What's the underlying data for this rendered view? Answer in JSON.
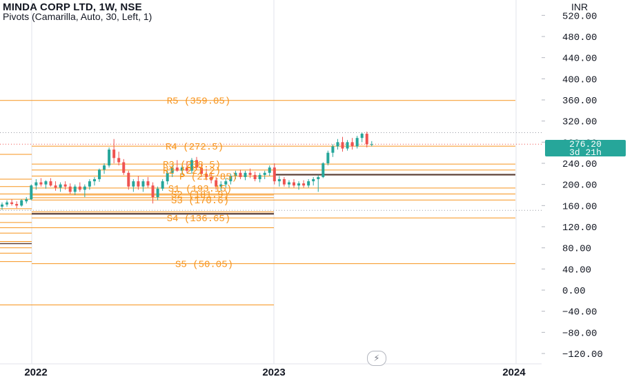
{
  "header": {
    "title": "MINDA CORP LTD, 1W, NSE",
    "subtitle": "Pivots (Camarilla, Auto, 30, Left, 1)",
    "currency": "INR"
  },
  "price_badge": {
    "price": "276.20",
    "countdown": "3d 21h",
    "color": "#26a69a"
  },
  "icons": {
    "bottom_button": "flash-icon"
  },
  "colors": {
    "up": "#26a69a",
    "down": "#ef5350",
    "pivot": "#f7931a",
    "pivot_dark": "#5d4037",
    "grid": "#e0e3eb"
  },
  "chart_data": {
    "type": "candlestick",
    "title": "MINDA CORP LTD, 1W, NSE",
    "indicator": "Pivots (Camarilla, Auto, 30, Left, 1)",
    "ylabel": "INR",
    "ylim": [
      -135,
      540
    ],
    "y_ticks": [
      -120,
      -80,
      -40,
      0,
      40,
      80,
      120,
      160,
      200,
      240,
      280,
      320,
      360,
      400,
      440,
      480,
      520
    ],
    "y_tick_labels": [
      "−120.00",
      "−80.00",
      "−40.00",
      "0.00",
      "40.00",
      "80.00",
      "120.00",
      "160.00",
      "200.00",
      "240.00",
      "280.00",
      "320.00",
      "360.00",
      "400.00",
      "440.00",
      "480.00",
      "520.00"
    ],
    "x_tick_labels": [
      "2022",
      "2023",
      "2024"
    ],
    "dotted_levels": [
      298,
      151
    ],
    "current_price": 276.2,
    "pivot_labels": [
      {
        "text": "R5 (359.05)",
        "value": 359.05
      },
      {
        "text": "R4 (272.5)",
        "value": 272.5
      },
      {
        "text": "R3 (238.5)",
        "value": 238.5
      },
      {
        "text": "R2 (227.2)",
        "value": 227.2
      },
      {
        "text": "P (215.85)",
        "value": 215.85
      },
      {
        "text": "S1 (193.15)",
        "value": 193.15
      },
      {
        "text": "S2 (181.9)",
        "value": 181.9
      },
      {
        "text": "S3 (170.6)",
        "value": 170.6
      },
      {
        "text": "S4 (136.65)",
        "value": 136.65
      },
      {
        "text": "S5 (50.05)",
        "value": 50.05
      }
    ],
    "pivot_periods": [
      {
        "period": "2021",
        "levels": [
          359,
          257,
          210,
          196,
          182,
          172,
          154,
          144,
          128,
          118,
          108,
          92,
          88,
          80,
          70,
          54,
          -28
        ]
      },
      {
        "period": "2022",
        "levels": [
          359.05,
          272.5,
          238.5,
          227.2,
          215.85,
          193.15,
          181.9,
          170.6,
          136.65,
          50.05,
          -28,
          180,
          175,
          148,
          144,
          145,
          118
        ]
      },
      {
        "period": "2023",
        "levels": [
          359.05,
          272.5,
          238.5,
          227.2,
          219,
          218,
          193.15,
          181.9,
          170.6,
          136.65,
          50.05
        ]
      }
    ],
    "candles": [
      {
        "o": 158,
        "h": 166,
        "l": 152,
        "c": 162
      },
      {
        "o": 162,
        "h": 170,
        "l": 158,
        "c": 166
      },
      {
        "o": 166,
        "h": 172,
        "l": 160,
        "c": 163
      },
      {
        "o": 163,
        "h": 168,
        "l": 155,
        "c": 160
      },
      {
        "o": 160,
        "h": 172,
        "l": 158,
        "c": 170
      },
      {
        "o": 168,
        "h": 176,
        "l": 164,
        "c": 172
      },
      {
        "o": 172,
        "h": 200,
        "l": 170,
        "c": 198
      },
      {
        "o": 198,
        "h": 210,
        "l": 190,
        "c": 204
      },
      {
        "o": 204,
        "h": 212,
        "l": 196,
        "c": 200
      },
      {
        "o": 200,
        "h": 208,
        "l": 192,
        "c": 206
      },
      {
        "o": 206,
        "h": 212,
        "l": 196,
        "c": 198
      },
      {
        "o": 198,
        "h": 206,
        "l": 188,
        "c": 194
      },
      {
        "o": 194,
        "h": 204,
        "l": 186,
        "c": 200
      },
      {
        "o": 200,
        "h": 206,
        "l": 190,
        "c": 196
      },
      {
        "o": 196,
        "h": 202,
        "l": 182,
        "c": 186
      },
      {
        "o": 186,
        "h": 200,
        "l": 180,
        "c": 196
      },
      {
        "o": 196,
        "h": 204,
        "l": 186,
        "c": 190
      },
      {
        "o": 190,
        "h": 200,
        "l": 176,
        "c": 196
      },
      {
        "o": 196,
        "h": 210,
        "l": 190,
        "c": 206
      },
      {
        "o": 206,
        "h": 214,
        "l": 198,
        "c": 210
      },
      {
        "o": 210,
        "h": 230,
        "l": 205,
        "c": 228
      },
      {
        "o": 228,
        "h": 240,
        "l": 220,
        "c": 236
      },
      {
        "o": 236,
        "h": 270,
        "l": 232,
        "c": 266
      },
      {
        "o": 266,
        "h": 286,
        "l": 240,
        "c": 250
      },
      {
        "o": 250,
        "h": 262,
        "l": 236,
        "c": 242
      },
      {
        "o": 242,
        "h": 248,
        "l": 218,
        "c": 222
      },
      {
        "o": 222,
        "h": 226,
        "l": 190,
        "c": 196
      },
      {
        "o": 196,
        "h": 210,
        "l": 186,
        "c": 206
      },
      {
        "o": 206,
        "h": 216,
        "l": 190,
        "c": 196
      },
      {
        "o": 196,
        "h": 210,
        "l": 186,
        "c": 206
      },
      {
        "o": 206,
        "h": 214,
        "l": 194,
        "c": 198
      },
      {
        "o": 198,
        "h": 204,
        "l": 164,
        "c": 176
      },
      {
        "o": 176,
        "h": 196,
        "l": 170,
        "c": 192
      },
      {
        "o": 192,
        "h": 210,
        "l": 188,
        "c": 206
      },
      {
        "o": 206,
        "h": 226,
        "l": 200,
        "c": 222
      },
      {
        "o": 222,
        "h": 236,
        "l": 214,
        "c": 232
      },
      {
        "o": 232,
        "h": 246,
        "l": 224,
        "c": 226
      },
      {
        "o": 226,
        "h": 236,
        "l": 218,
        "c": 232
      },
      {
        "o": 232,
        "h": 244,
        "l": 222,
        "c": 226
      },
      {
        "o": 226,
        "h": 250,
        "l": 220,
        "c": 246
      },
      {
        "o": 246,
        "h": 252,
        "l": 228,
        "c": 232
      },
      {
        "o": 232,
        "h": 238,
        "l": 214,
        "c": 220
      },
      {
        "o": 220,
        "h": 230,
        "l": 208,
        "c": 214
      },
      {
        "o": 214,
        "h": 224,
        "l": 202,
        "c": 208
      },
      {
        "o": 208,
        "h": 214,
        "l": 190,
        "c": 196
      },
      {
        "o": 196,
        "h": 206,
        "l": 188,
        "c": 200
      },
      {
        "o": 200,
        "h": 212,
        "l": 194,
        "c": 206
      },
      {
        "o": 206,
        "h": 220,
        "l": 200,
        "c": 216
      },
      {
        "o": 216,
        "h": 226,
        "l": 210,
        "c": 222
      },
      {
        "o": 222,
        "h": 228,
        "l": 210,
        "c": 214
      },
      {
        "o": 214,
        "h": 226,
        "l": 208,
        "c": 222
      },
      {
        "o": 222,
        "h": 230,
        "l": 212,
        "c": 218
      },
      {
        "o": 218,
        "h": 224,
        "l": 206,
        "c": 210
      },
      {
        "o": 210,
        "h": 222,
        "l": 204,
        "c": 218
      },
      {
        "o": 218,
        "h": 226,
        "l": 210,
        "c": 222
      },
      {
        "o": 222,
        "h": 236,
        "l": 216,
        "c": 232
      },
      {
        "o": 232,
        "h": 240,
        "l": 200,
        "c": 206
      },
      {
        "o": 206,
        "h": 216,
        "l": 196,
        "c": 210
      },
      {
        "o": 210,
        "h": 214,
        "l": 196,
        "c": 200
      },
      {
        "o": 200,
        "h": 208,
        "l": 194,
        "c": 204
      },
      {
        "o": 204,
        "h": 210,
        "l": 194,
        "c": 198
      },
      {
        "o": 198,
        "h": 206,
        "l": 190,
        "c": 202
      },
      {
        "o": 202,
        "h": 208,
        "l": 194,
        "c": 198
      },
      {
        "o": 198,
        "h": 210,
        "l": 194,
        "c": 206
      },
      {
        "o": 206,
        "h": 214,
        "l": 198,
        "c": 210
      },
      {
        "o": 210,
        "h": 218,
        "l": 186,
        "c": 214
      },
      {
        "o": 214,
        "h": 242,
        "l": 212,
        "c": 240
      },
      {
        "o": 240,
        "h": 264,
        "l": 236,
        "c": 260
      },
      {
        "o": 260,
        "h": 276,
        "l": 252,
        "c": 272
      },
      {
        "o": 272,
        "h": 286,
        "l": 266,
        "c": 280
      },
      {
        "o": 280,
        "h": 290,
        "l": 262,
        "c": 268
      },
      {
        "o": 268,
        "h": 284,
        "l": 264,
        "c": 280
      },
      {
        "o": 280,
        "h": 288,
        "l": 266,
        "c": 272
      },
      {
        "o": 272,
        "h": 292,
        "l": 268,
        "c": 288
      },
      {
        "o": 288,
        "h": 298,
        "l": 280,
        "c": 296
      },
      {
        "o": 296,
        "h": 300,
        "l": 270,
        "c": 276
      },
      {
        "o": 276,
        "h": 282,
        "l": 272,
        "c": 276.2
      }
    ]
  }
}
